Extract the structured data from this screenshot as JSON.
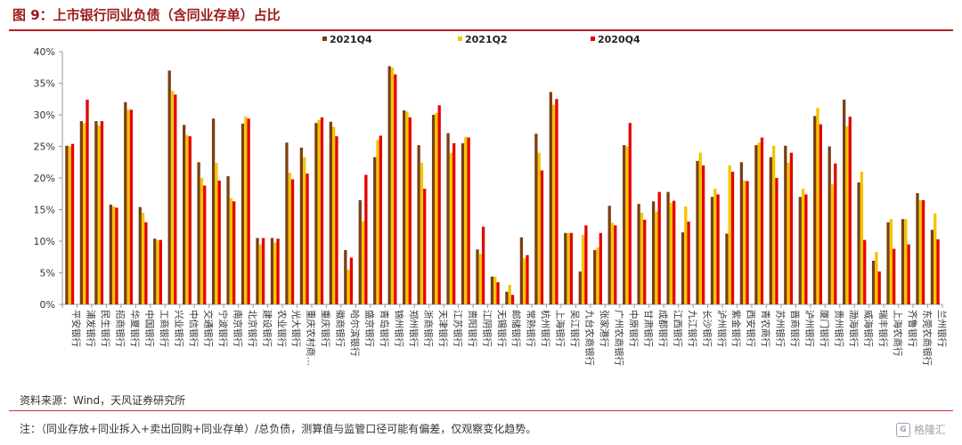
{
  "title": "图 9：上市银行同业负债（含同业存单）占比",
  "source": "资料来源：Wind，天风证券研究所",
  "note": "注：（同业存放+同业拆入+卖出回购+同业存单）/总负债，测算值与监管口径可能有偏差，仅观察变化趋势。",
  "watermark": "格隆汇",
  "chart_data": {
    "type": "bar",
    "ylim": [
      0,
      40
    ],
    "yticks": [
      "0%",
      "5%",
      "10%",
      "15%",
      "20%",
      "25%",
      "30%",
      "35%",
      "40%"
    ],
    "legend_position": "top-center",
    "grid": false,
    "categories": [
      "平安银行",
      "浦发银行",
      "民生银行",
      "招商银行",
      "华夏银行",
      "中国银行",
      "工商银行",
      "兴业银行",
      "中信银行",
      "交通银行",
      "宁波银行",
      "南京银行",
      "北京银行",
      "建设银行",
      "农业银行",
      "光大银行",
      "重庆农村商…",
      "重庆银行",
      "徽商银行",
      "哈尔滨银行",
      "盛京银行",
      "青岛银行",
      "锦州银行",
      "郑州银行",
      "浙商银行",
      "天津银行",
      "江苏银行",
      "贵阳银行",
      "江阴银行",
      "无锡银行",
      "邮储银行",
      "常熟银行",
      "杭州银行",
      "上海银行",
      "吴江银行",
      "九台农商银行",
      "张家港行",
      "广州农商银行",
      "中原银行",
      "甘肃银行",
      "成都银行",
      "江西银行",
      "九江银行",
      "长沙银行",
      "泸州银行",
      "紫金银行",
      "西安银行",
      "青农商行",
      "苏州银行",
      "晋商银行",
      "泸州银行",
      "厦门银行",
      "贵州银行",
      "渤海银行",
      "威海银行",
      "瑞丰银行",
      "上海农商行",
      "齐鲁银行",
      "东莞农商银行",
      "兰州银行"
    ],
    "series": [
      {
        "name": "2021Q4",
        "color": "#7b3f12",
        "values": [
          25.1,
          29.0,
          29.0,
          15.8,
          32.0,
          15.4,
          10.4,
          37.0,
          28.4,
          22.5,
          29.4,
          20.3,
          28.6,
          10.5,
          10.5,
          25.6,
          24.8,
          28.7,
          28.9,
          8.6,
          16.5,
          23.3,
          37.7,
          30.7,
          25.2,
          30.0,
          27.1,
          25.5,
          8.7,
          4.4,
          2.0,
          10.6,
          27.0,
          33.6,
          11.3,
          5.2,
          8.6,
          15.6,
          25.2,
          15.9,
          16.3,
          17.8,
          11.4,
          22.7,
          17.0,
          11.2,
          22.5,
          25.2,
          23.3,
          25.1,
          17.0,
          29.8,
          25.0,
          32.4,
          19.3,
          6.9,
          13.0,
          13.5,
          17.6,
          11.8
        ]
      },
      {
        "name": "2021Q2",
        "color": "#f5c400",
        "values": [
          25.0,
          28.7,
          28.3,
          15.5,
          30.8,
          14.5,
          10.2,
          33.8,
          26.8,
          20.0,
          22.4,
          16.8,
          29.7,
          9.5,
          9.8,
          20.8,
          23.3,
          29.2,
          28.1,
          5.5,
          13.2,
          26.0,
          37.5,
          30.5,
          22.4,
          30.3,
          24.0,
          26.5,
          8.0,
          4.4,
          3.1,
          7.3,
          24.0,
          31.6,
          11.3,
          11.0,
          9.0,
          12.9,
          25.0,
          14.5,
          14.7,
          16.1,
          15.5,
          24.0,
          18.3,
          22.0,
          19.6,
          25.6,
          25.1,
          22.4,
          18.3,
          31.1,
          19.0,
          28.2,
          21.0,
          8.3,
          13.5,
          13.5,
          16.5,
          14.4
        ]
      },
      {
        "name": "2020Q4",
        "color": "#e60000",
        "values": [
          25.4,
          32.4,
          29.0,
          15.3,
          30.8,
          13.0,
          10.2,
          33.2,
          26.6,
          18.8,
          19.6,
          16.3,
          29.4,
          10.5,
          10.4,
          19.8,
          20.7,
          29.6,
          26.6,
          7.4,
          20.5,
          26.7,
          36.4,
          29.6,
          18.3,
          31.5,
          25.5,
          26.4,
          12.3,
          3.5,
          1.5,
          7.8,
          21.2,
          32.5,
          11.3,
          12.5,
          11.3,
          12.5,
          28.7,
          13.4,
          17.8,
          16.4,
          13.1,
          22.0,
          17.4,
          21.0,
          19.5,
          26.4,
          20.0,
          24.0,
          17.4,
          28.5,
          22.3,
          29.7,
          10.2,
          5.2,
          8.8,
          9.5,
          16.5,
          10.3
        ]
      }
    ]
  }
}
